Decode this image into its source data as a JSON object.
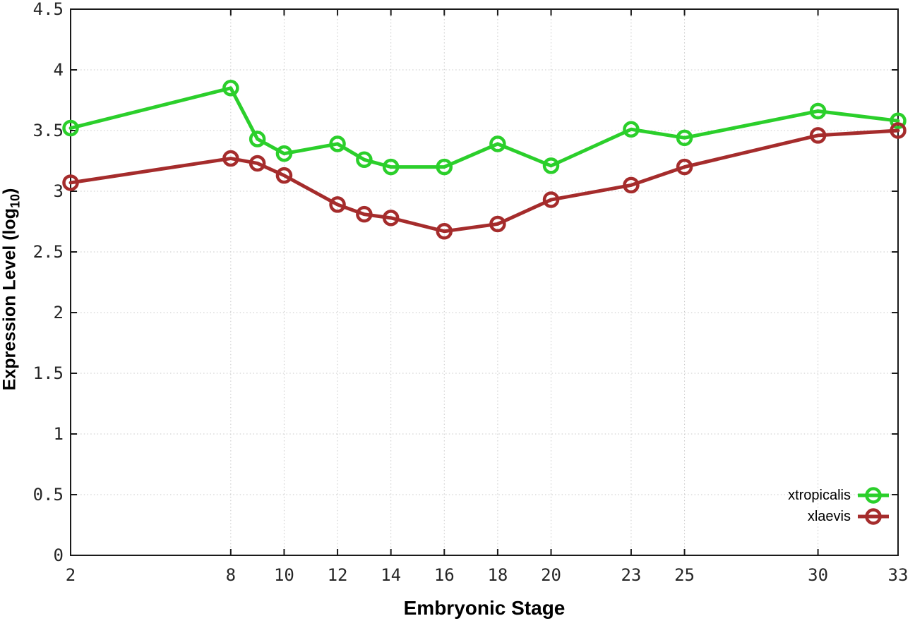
{
  "chart_data": {
    "type": "line",
    "title": "",
    "xlabel": "Embryonic Stage",
    "ylabel": "Expression Level (log10)",
    "ylabel_parts": {
      "prefix": "Expression Level (log",
      "sub": "10",
      "suffix": ")"
    },
    "xlim": [
      2,
      33
    ],
    "ylim": [
      0,
      4.5
    ],
    "xticks": [
      2,
      8,
      10,
      12,
      14,
      16,
      18,
      20,
      23,
      25,
      30,
      33
    ],
    "yticks": [
      0,
      0.5,
      1,
      1.5,
      2,
      2.5,
      3,
      3.5,
      4,
      4.5
    ],
    "grid": "dotted",
    "legend_position": "inside-bottom-right",
    "x": [
      2,
      8,
      9,
      10,
      12,
      13,
      14,
      16,
      18,
      20,
      23,
      25,
      30,
      33
    ],
    "series": [
      {
        "name": "xtropicalis",
        "color": "#2bcf2b",
        "values": [
          3.52,
          3.85,
          3.43,
          3.31,
          3.39,
          3.26,
          3.2,
          3.2,
          3.39,
          3.21,
          3.51,
          3.44,
          3.66,
          3.58
        ]
      },
      {
        "name": "xlaevis",
        "color": "#a52c2c",
        "values": [
          3.07,
          3.27,
          3.23,
          3.13,
          2.89,
          2.81,
          2.78,
          2.67,
          2.73,
          2.93,
          3.05,
          3.2,
          3.46,
          3.5
        ]
      }
    ]
  },
  "colors": {
    "background": "#ffffff",
    "grid": "#c8c8c8",
    "axis": "#1a1a1a",
    "tick_label": "#262626"
  }
}
